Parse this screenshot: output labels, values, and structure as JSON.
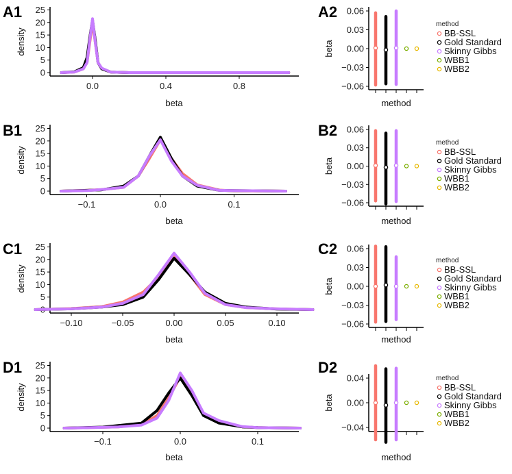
{
  "colors": {
    "BB-SSL": "#F8766D",
    "Gold Standard": "#000000",
    "Skinny Gibbs": "#C77CFF",
    "WBB1": "#7CAE00",
    "WBB2": "#E7B800"
  },
  "chart_data": [
    {
      "panel": "A1",
      "type": "line",
      "xlabel": "beta",
      "ylabel": "density",
      "xlim": [
        -0.17,
        1.07
      ],
      "ylim": [
        0,
        25
      ],
      "xticks": [
        0.0,
        0.4,
        0.8
      ],
      "xtick_labels": [
        "0.0",
        "0.4",
        "0.8"
      ],
      "yticks": [
        0,
        5,
        10,
        15,
        20,
        25
      ],
      "x": [
        -0.17,
        -0.1,
        -0.05,
        -0.03,
        -0.015,
        0,
        0.015,
        0.03,
        0.05,
        0.1,
        0.2,
        0.5,
        1.07
      ],
      "series": [
        {
          "name": "BB-SSL",
          "values": [
            0,
            0.2,
            1.5,
            4,
            12,
            20,
            12,
            4,
            1.6,
            0.2,
            0,
            0,
            0
          ]
        },
        {
          "name": "Gold Standard",
          "values": [
            0,
            0.3,
            2,
            6,
            14,
            21,
            13,
            4,
            1.5,
            0.2,
            0,
            0,
            0
          ]
        },
        {
          "name": "Skinny Gibbs",
          "values": [
            0,
            0.2,
            1.5,
            4,
            13,
            21.5,
            12,
            4,
            1.8,
            0.2,
            0,
            0,
            0
          ]
        }
      ]
    },
    {
      "panel": "B1",
      "type": "line",
      "xlabel": "beta",
      "ylabel": "density",
      "xlim": [
        -0.135,
        0.17
      ],
      "ylim": [
        0,
        25
      ],
      "xticks": [
        -0.1,
        0,
        0.1
      ],
      "xtick_labels": [
        "−0.1",
        "0.0",
        "0.1"
      ],
      "yticks": [
        0,
        5,
        10,
        15,
        20,
        25
      ],
      "x": [
        -0.135,
        -0.1,
        -0.08,
        -0.05,
        -0.03,
        -0.015,
        0,
        0.015,
        0.03,
        0.05,
        0.08,
        0.1,
        0.17
      ],
      "series": [
        {
          "name": "BB-SSL",
          "values": [
            0,
            0.3,
            0.6,
            1.5,
            6,
            13,
            20.5,
            13,
            7,
            2.5,
            0.4,
            0.1,
            0
          ]
        },
        {
          "name": "Gold Standard",
          "values": [
            0,
            0.3,
            0.5,
            2,
            6,
            14,
            21.5,
            13,
            6,
            2,
            0.3,
            0.2,
            0
          ]
        },
        {
          "name": "Skinny Gibbs",
          "values": [
            0,
            0.2,
            0.6,
            1.5,
            6,
            14,
            20.5,
            12,
            6,
            2.3,
            0.3,
            0.2,
            0
          ]
        }
      ]
    },
    {
      "panel": "C1",
      "type": "line",
      "xlabel": "beta",
      "ylabel": "density",
      "xlim": [
        -0.135,
        0.135
      ],
      "ylim": [
        0,
        25
      ],
      "xticks": [
        -0.1,
        -0.05,
        0,
        0.05,
        0.1
      ],
      "xtick_labels": [
        "−0.10",
        "−0.05",
        "0.00",
        "0.05",
        "0.10"
      ],
      "yticks": [
        0,
        5,
        10,
        15,
        20,
        25
      ],
      "x": [
        -0.135,
        -0.1,
        -0.07,
        -0.05,
        -0.03,
        -0.015,
        0,
        0.015,
        0.03,
        0.05,
        0.07,
        0.1,
        0.135
      ],
      "series": [
        {
          "name": "BB-SSL",
          "values": [
            0,
            0.4,
            1.2,
            3,
            7,
            13,
            21,
            14,
            6,
            2,
            0.8,
            0.3,
            0
          ]
        },
        {
          "name": "Gold Standard",
          "values": [
            0,
            0.3,
            1,
            2,
            5,
            12,
            20.5,
            14,
            7,
            2.5,
            1,
            0.2,
            0
          ]
        },
        {
          "name": "Skinny Gibbs",
          "values": [
            0,
            0.3,
            1,
            2.5,
            6,
            14,
            22.5,
            15,
            6.5,
            2,
            0.8,
            0.3,
            0
          ]
        }
      ]
    },
    {
      "panel": "D1",
      "type": "line",
      "xlabel": "beta",
      "ylabel": "density",
      "xlim": [
        -0.15,
        0.155
      ],
      "ylim": [
        0,
        25
      ],
      "xticks": [
        -0.1,
        0,
        0.1
      ],
      "xtick_labels": [
        "−0.1",
        "0.0",
        "0.1"
      ],
      "yticks": [
        0,
        5,
        10,
        15,
        20,
        25
      ],
      "x": [
        -0.15,
        -0.1,
        -0.08,
        -0.05,
        -0.03,
        -0.015,
        0,
        0.015,
        0.03,
        0.05,
        0.08,
        0.1,
        0.155
      ],
      "series": [
        {
          "name": "BB-SSL",
          "values": [
            0,
            0.3,
            0.5,
            1.5,
            5,
            12,
            20.5,
            14,
            6,
            2.5,
            0.5,
            0.2,
            0
          ]
        },
        {
          "name": "Gold Standard",
          "values": [
            0,
            0.4,
            1,
            2,
            7,
            14,
            20,
            13,
            5,
            2,
            0.5,
            0.2,
            0
          ]
        },
        {
          "name": "Skinny Gibbs",
          "values": [
            0,
            0.3,
            0.5,
            1.2,
            4,
            11,
            22,
            15,
            6,
            3,
            0.6,
            0.2,
            0
          ]
        }
      ]
    },
    {
      "panel": "A2",
      "type": "interval",
      "xlabel": "method",
      "ylabel": "beta",
      "yticks": [
        0.06,
        0.03,
        0,
        -0.03,
        -0.06
      ],
      "ytick_labels": [
        "0.06",
        "0.03",
        "0.00",
        "−0.03",
        "−0.06"
      ],
      "legend_title": "method",
      "legend": "right",
      "categories": [
        "BB-SSL",
        "Gold Standard",
        "Skinny Gibbs",
        "WBB1",
        "WBB2"
      ],
      "lower": [
        -0.058,
        -0.056,
        -0.057,
        0,
        0
      ],
      "estimate": [
        0.001,
        -0.002,
        0.001,
        0,
        0
      ],
      "upper": [
        0.057,
        0.051,
        0.06,
        0,
        0
      ]
    },
    {
      "panel": "B2",
      "type": "interval",
      "xlabel": "method",
      "ylabel": "beta",
      "yticks": [
        0.06,
        0.03,
        0,
        -0.03,
        -0.06
      ],
      "ytick_labels": [
        "0.06",
        "0.03",
        "0.00",
        "−0.03",
        "−0.06"
      ],
      "legend_title": "method",
      "legend": "right",
      "categories": [
        "BB-SSL",
        "Gold Standard",
        "Skinny Gibbs",
        "WBB1",
        "WBB2"
      ],
      "lower": [
        -0.057,
        -0.062,
        -0.058,
        0,
        0
      ],
      "estimate": [
        0.001,
        -0.002,
        0.001,
        0,
        0
      ],
      "upper": [
        0.058,
        0.054,
        0.058,
        0,
        0
      ]
    },
    {
      "panel": "C2",
      "type": "interval",
      "xlabel": "method",
      "ylabel": "beta",
      "yticks": [
        0.06,
        0.03,
        0,
        -0.03,
        -0.06
      ],
      "ytick_labels": [
        "0.06",
        "0.03",
        "0.00",
        "−0.03",
        "−0.06"
      ],
      "legend_title": "method",
      "legend": "right",
      "categories": [
        "BB-SSL",
        "Gold Standard",
        "Skinny Gibbs",
        "WBB1",
        "WBB2"
      ],
      "lower": [
        -0.057,
        -0.056,
        -0.053,
        0,
        0
      ],
      "estimate": [
        0,
        0.002,
        0,
        0,
        0
      ],
      "upper": [
        0.064,
        0.063,
        0.047,
        0,
        0
      ]
    },
    {
      "panel": "D2",
      "type": "interval",
      "xlabel": "method",
      "ylabel": "beta",
      "yticks": [
        0.04,
        0,
        -0.04
      ],
      "ytick_labels": [
        "0.04",
        "0.00",
        "−0.04"
      ],
      "legend_title": "method",
      "legend": "right",
      "categories": [
        "BB-SSL",
        "Gold Standard",
        "Skinny Gibbs",
        "WBB1",
        "WBB2"
      ],
      "lower": [
        -0.06,
        -0.064,
        -0.06,
        0,
        0
      ],
      "estimate": [
        0,
        -0.004,
        0,
        0,
        0
      ],
      "upper": [
        0.06,
        0.055,
        0.056,
        0,
        0
      ]
    }
  ]
}
